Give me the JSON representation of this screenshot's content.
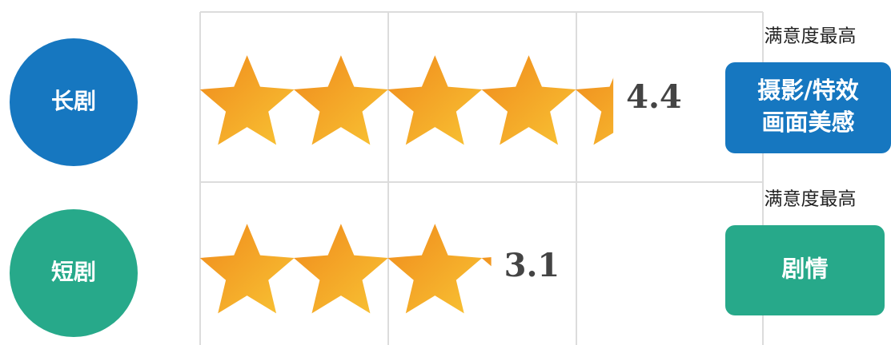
{
  "chart_data": {
    "type": "rating",
    "categories": [
      "长剧",
      "短剧"
    ],
    "values": [
      4.4,
      3.1
    ],
    "colors": [
      "#1677c0",
      "#27a98a"
    ],
    "highlights": [
      {
        "title": "满意度最高",
        "lines": [
          "摄影/特效",
          "画面美感"
        ]
      },
      {
        "title": "满意度最高",
        "lines": [
          "剧情"
        ]
      }
    ]
  }
}
